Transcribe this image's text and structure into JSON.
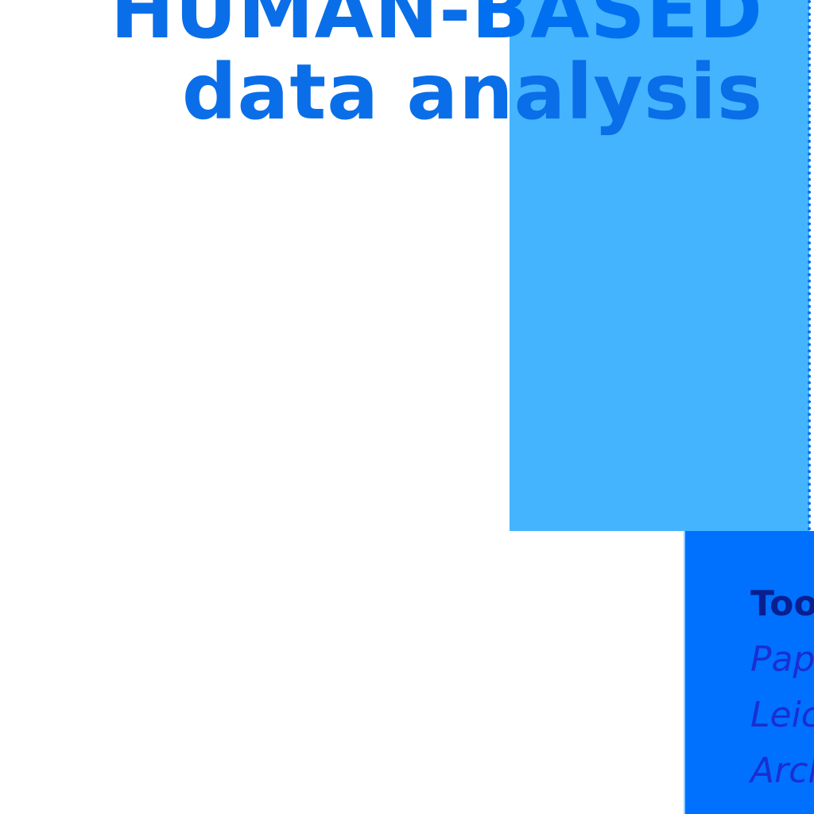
{
  "colors": {
    "background": "#ffffff",
    "panel_light": "#44b4ff",
    "panel_dark": "#0070ff",
    "heading_text": "#0a6ee8",
    "heading_text_on_panel": "#0070f0",
    "tools_title": "#0a1f8f",
    "tools_item": "#1a2fd0"
  },
  "heading": {
    "line1_part1": "HUMAN-",
    "line1_part2": "BASED",
    "line2": "data analysis"
  },
  "tools": {
    "title": "Too",
    "items": [
      "Pap",
      "Leic",
      "Arch"
    ]
  }
}
